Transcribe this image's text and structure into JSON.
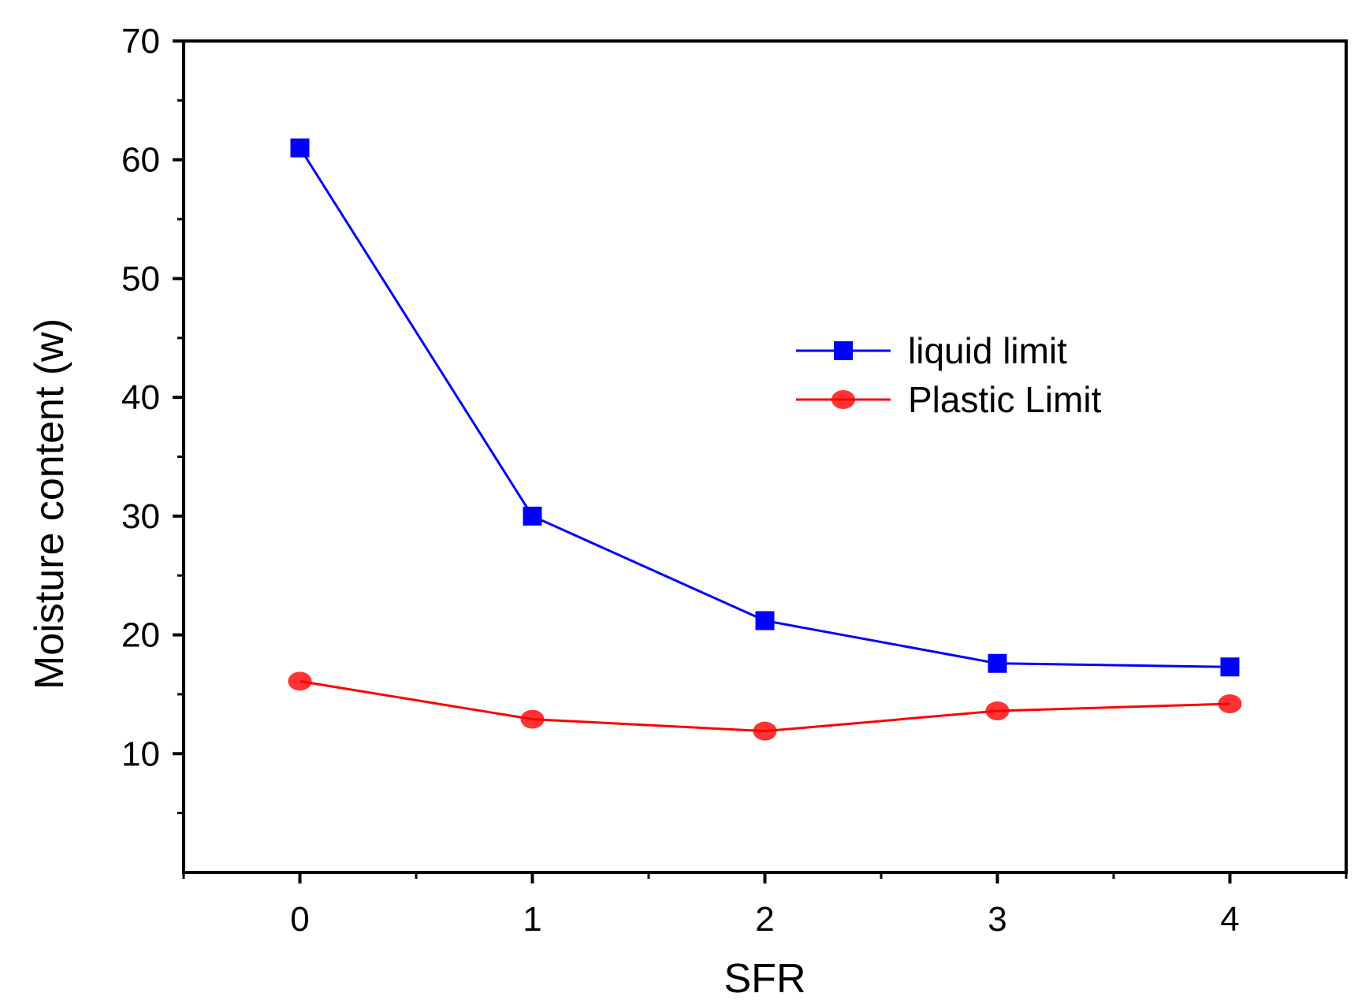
{
  "chart_data": {
    "type": "line",
    "title": "",
    "xlabel": "SFR",
    "ylabel": "Moisture content (w)",
    "x": [
      0,
      1,
      2,
      3,
      4
    ],
    "xlim": [
      -0.5,
      4.5
    ],
    "ylim": [
      0,
      70
    ],
    "x_ticks": [
      "0",
      "1",
      "2",
      "3",
      "4"
    ],
    "y_ticks": [
      "10",
      "20",
      "30",
      "40",
      "50",
      "60",
      "70"
    ],
    "grid": false,
    "legend_position": "center-right",
    "series": [
      {
        "name": "liquid limit",
        "values": [
          61,
          30,
          21.2,
          17.6,
          17.3
        ],
        "color": "#0000ff",
        "marker": "square"
      },
      {
        "name": "Plastic Limit",
        "values": [
          16.1,
          12.9,
          11.9,
          13.6,
          14.2
        ],
        "color": "#ff0000",
        "marker": "circle"
      }
    ]
  }
}
